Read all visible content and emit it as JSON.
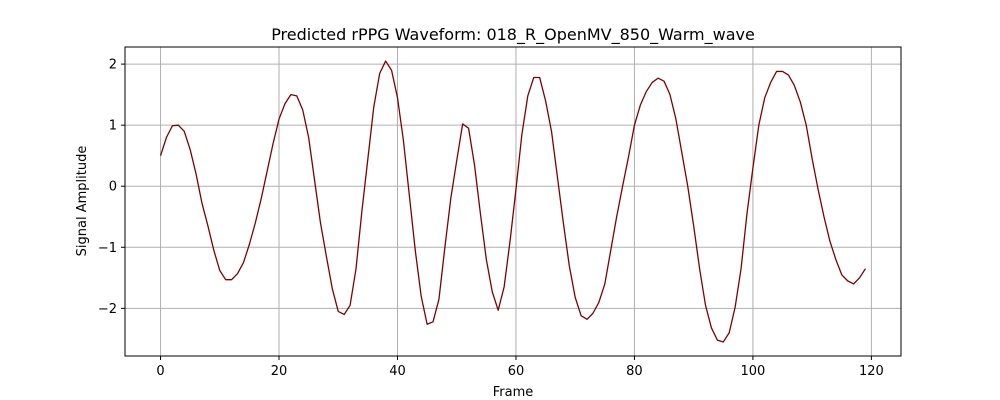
{
  "chart_data": {
    "type": "line",
    "title": "Predicted rPPG Waveform: 018_R_OpenMV_850_Warm_wave",
    "xlabel": "Frame",
    "ylabel": "Signal Amplitude",
    "xlim": [
      -6,
      125
    ],
    "ylim": [
      -2.78,
      2.28
    ],
    "xticks": [
      0,
      20,
      40,
      60,
      80,
      100,
      120
    ],
    "xtick_labels": [
      "0",
      "20",
      "40",
      "60",
      "80",
      "100",
      "120"
    ],
    "yticks": [
      -2,
      -1,
      0,
      1,
      2
    ],
    "ytick_labels": [
      "−2",
      "−1",
      "0",
      "1",
      "2"
    ],
    "grid": true,
    "legend": "none",
    "line_color": "#800000",
    "series": [
      {
        "x": [
          0,
          1,
          2,
          3,
          4,
          5,
          6,
          7,
          8,
          9,
          10,
          11,
          12,
          13,
          14,
          15,
          16,
          17,
          18,
          19,
          20,
          21,
          22,
          23,
          24,
          25,
          26,
          27,
          28,
          29,
          30,
          31,
          32,
          33,
          34,
          35,
          36,
          37,
          38,
          39,
          40,
          41,
          42,
          43,
          44,
          45,
          46,
          47,
          48,
          49,
          50,
          51,
          52,
          53,
          54,
          55,
          56,
          57,
          58,
          59,
          60,
          61,
          62,
          63,
          64,
          65,
          66,
          67,
          68,
          69,
          70,
          71,
          72,
          73,
          74,
          75,
          76,
          77,
          78,
          79,
          80,
          81,
          82,
          83,
          84,
          85,
          86,
          87,
          88,
          89,
          90,
          91,
          92,
          93,
          94,
          95,
          96,
          97,
          98,
          99,
          100,
          101,
          102,
          103,
          104,
          105,
          106,
          107,
          108,
          109,
          110,
          111,
          112,
          113,
          114,
          115,
          116,
          117,
          118,
          119
        ],
        "values": [
          0.5,
          0.8,
          0.99,
          1.0,
          0.9,
          0.6,
          0.2,
          -0.28,
          -0.65,
          -1.05,
          -1.38,
          -1.53,
          -1.53,
          -1.43,
          -1.25,
          -0.95,
          -0.6,
          -0.2,
          0.25,
          0.7,
          1.1,
          1.35,
          1.5,
          1.48,
          1.25,
          0.8,
          0.1,
          -0.6,
          -1.15,
          -1.68,
          -2.05,
          -2.1,
          -1.95,
          -1.35,
          -0.4,
          0.45,
          1.3,
          1.85,
          2.05,
          1.9,
          1.45,
          0.75,
          -0.15,
          -1.05,
          -1.8,
          -2.26,
          -2.22,
          -1.85,
          -1.0,
          -0.2,
          0.42,
          1.02,
          0.95,
          0.35,
          -0.45,
          -1.2,
          -1.73,
          -2.03,
          -1.65,
          -0.9,
          -0.05,
          0.85,
          1.48,
          1.78,
          1.78,
          1.4,
          0.9,
          0.15,
          -0.6,
          -1.3,
          -1.82,
          -2.12,
          -2.18,
          -2.08,
          -1.9,
          -1.6,
          -1.05,
          -0.5,
          0.0,
          0.48,
          1.0,
          1.33,
          1.55,
          1.7,
          1.77,
          1.72,
          1.5,
          1.1,
          0.55,
          0.0,
          -0.65,
          -1.35,
          -1.95,
          -2.32,
          -2.52,
          -2.55,
          -2.4,
          -1.98,
          -1.35,
          -0.45,
          0.3,
          1.0,
          1.45,
          1.7,
          1.88,
          1.88,
          1.82,
          1.65,
          1.38,
          1.0,
          0.45,
          -0.05,
          -0.5,
          -0.9,
          -1.2,
          -1.45,
          -1.55,
          -1.6,
          -1.5,
          -1.35
        ]
      }
    ]
  }
}
